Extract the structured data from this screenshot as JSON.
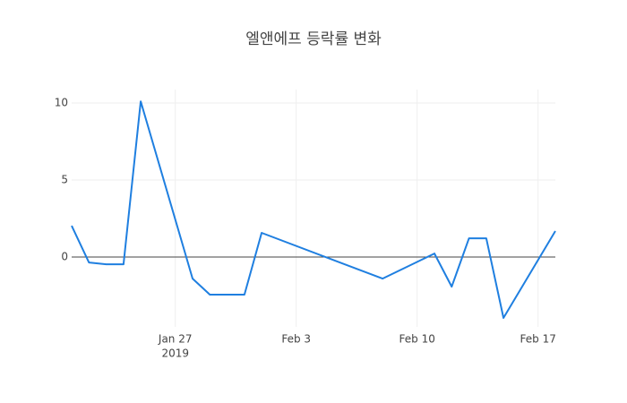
{
  "chart_data": {
    "type": "line",
    "title": "엘앤에프 등락률 변화",
    "x": [
      "2019-01-21",
      "2019-01-22",
      "2019-01-23",
      "2019-01-24",
      "2019-01-25",
      "2019-01-28",
      "2019-01-29",
      "2019-01-30",
      "2019-01-31",
      "2019-02-01",
      "2019-02-08",
      "2019-02-11",
      "2019-02-12",
      "2019-02-13",
      "2019-02-14",
      "2019-02-15",
      "2019-02-18"
    ],
    "series": [
      {
        "name": "등락률",
        "color": "#1f7fe0",
        "values": [
          2.03,
          -0.35,
          -0.47,
          -0.47,
          10.1,
          -1.4,
          -2.44,
          -2.44,
          -2.44,
          1.57,
          -1.4,
          0.23,
          -1.92,
          1.22,
          1.22,
          -3.95,
          1.69
        ]
      }
    ],
    "xlim": [
      "2019-01-21",
      "2019-02-18"
    ],
    "xticks": [
      {
        "value": "2019-01-27",
        "label": "Jan 27"
      },
      {
        "value": "2019-02-03",
        "label": "Feb 3"
      },
      {
        "value": "2019-02-10",
        "label": "Feb 10"
      },
      {
        "value": "2019-02-17",
        "label": "Feb 17"
      }
    ],
    "x_year_label": "2019",
    "ylim": [
      -4.53,
      10.87
    ],
    "yticks": [
      0,
      5,
      10
    ],
    "grid": true,
    "zeroline": true
  }
}
